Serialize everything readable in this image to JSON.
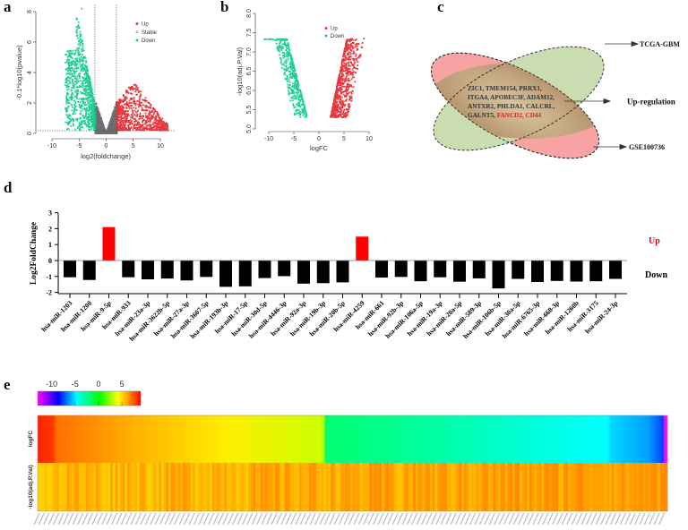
{
  "panels": {
    "a": "a",
    "b": "b",
    "c": "c",
    "d": "d",
    "e": "e"
  },
  "colors": {
    "up": "#e8383d",
    "down": "#1fcf95",
    "stable": "#6b6e72",
    "bar_up": "#ff0000",
    "bar_down": "#000000",
    "venn_red": "#f7a3a3",
    "venn_green": "#c9ddb1",
    "venn_center": "#c9a47c"
  },
  "chart_data": [
    {
      "id": "a",
      "type": "scatter",
      "title": "",
      "xlabel": "log2(foldchange)",
      "ylabel": "-0.1*log10(pvalue)",
      "xlim": [
        -12,
        12
      ],
      "ylim": [
        0,
        8
      ],
      "xticks": [
        "-10",
        "-5",
        "0",
        "5",
        "10"
      ],
      "yticks": [
        "0",
        "2",
        "4",
        "6",
        "8"
      ],
      "thresholds": {
        "log2fc": [
          -2,
          2
        ],
        "y": 0.2
      },
      "legend": {
        "position": "top-right",
        "entries": [
          "Up",
          "Stable",
          "Down"
        ]
      },
      "series": [
        {
          "name": "Up",
          "x_range": [
            2,
            11.5
          ],
          "y_range": [
            0.2,
            3.2
          ]
        },
        {
          "name": "Stable",
          "x_range": [
            -2,
            2
          ],
          "y_range": [
            0,
            2.4
          ]
        },
        {
          "name": "Down",
          "x_range": [
            -7.5,
            -2
          ],
          "y_range": [
            0.2,
            8.2
          ]
        }
      ]
    },
    {
      "id": "b",
      "type": "scatter",
      "xlabel": "logFC",
      "ylabel": "-log10(adj.P.Val)",
      "xlim": [
        -10,
        10
      ],
      "ylim": [
        5.0,
        8.0
      ],
      "xticks": [
        "-10",
        "-5",
        "0",
        "5",
        "10"
      ],
      "yticks": [
        "5.0",
        "5.5",
        "6.0",
        "6.5",
        "7.0",
        "7.5",
        "8.0"
      ],
      "legend": {
        "position": "top-right",
        "entries": [
          "Up",
          "Down"
        ]
      },
      "series": [
        {
          "name": "Up",
          "x_range": [
            2.2,
            11
          ],
          "y_range": [
            5.3,
            7.35
          ]
        },
        {
          "name": "Down",
          "x_range": [
            -11,
            -2.2
          ],
          "y_range": [
            5.3,
            7.35
          ]
        }
      ]
    },
    {
      "id": "c",
      "type": "venn",
      "sets": [
        "TCGA-GBM",
        "GSE100736"
      ],
      "intersection_label": "Up-regulation",
      "intersection_lines": [
        [
          {
            "t": "ZIC1, TMEM154, PRRX1,",
            "hl": false
          }
        ],
        [
          {
            "t": "ITGA4, APOBEC3F, ADAM12,",
            "hl": false
          }
        ],
        [
          {
            "t": "ANTXR2, PHLDA1, CALCRL,",
            "hl": false
          }
        ],
        [
          {
            "t": "GALNT5, ",
            "hl": false
          },
          {
            "t": "FANCD2, CD44",
            "hl": true
          }
        ]
      ]
    },
    {
      "id": "d",
      "type": "bar",
      "ylabel": "Log2FoldChange",
      "ylim": [
        -2,
        3
      ],
      "yticks": [
        "-2",
        "-1",
        "0",
        "1",
        "2",
        "3"
      ],
      "legend": {
        "up": "Up",
        "down": "Down"
      },
      "categories": [
        "hsa-miR-1203",
        "hsa-miR-1200",
        "hsa-miR-9-5p",
        "hsa-miR-933",
        "hsa-miR-23a-3p",
        "hsa-miR-3622b-5p",
        "hsa-miR-27a-3p",
        "hsa-miR-3607-5p",
        "hsa-miR-193b-3p",
        "hsa-miR-17-5p",
        "hsa-miR-30d-5p",
        "hsa-miR-4446-3p",
        "hsa-miR-92a-3p",
        "hsa-miR-19b-3p",
        "hsa-miR-20b-5p",
        "hsa-miR-4259",
        "hsa-miR-661",
        "hsa-miR-92b-3p",
        "hsa-miR-106a-5p",
        "hsa-miR-19a-3p",
        "hsa-miR-20a-5p",
        "hsa-miR-589-3p",
        "hsa-miR-106b-5p",
        "hsa-miR-30a-5p",
        "hsa-miR-6765-3p",
        "hsa-miR-668-3p",
        "hsa-miR-1260b",
        "hsa-miR-3175",
        "hsa-miR-24-3p"
      ],
      "values": [
        -1.05,
        -1.22,
        2.1,
        -1.05,
        -1.18,
        -1.13,
        -1.25,
        -1.03,
        -1.65,
        -1.62,
        -1.1,
        -0.98,
        -1.45,
        -1.42,
        -1.37,
        1.5,
        -1.07,
        -1.03,
        -1.3,
        -1.05,
        -1.33,
        -1.12,
        -1.75,
        -1.15,
        -1.35,
        -1.28,
        -1.32,
        -1.3,
        -1.15
      ]
    },
    {
      "id": "e",
      "type": "heatmap",
      "rows": [
        "logFC",
        "-log10(adj.P.Val)"
      ],
      "colorbar": {
        "ticks": [
          "-10",
          "-5",
          "0",
          "5"
        ],
        "range": [
          -13,
          9
        ]
      },
      "n_columns": 260
    }
  ]
}
